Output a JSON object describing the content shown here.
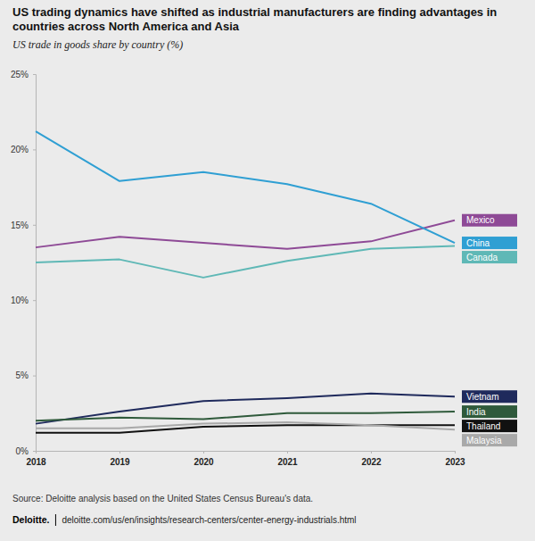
{
  "chart_data": {
    "type": "line",
    "title": "US trading dynamics have shifted as industrial manufacturers are finding advantages in countries across North America and Asia",
    "subtitle": "US trade in goods share by country (%)",
    "source": "Source: Deloitte analysis based on the United States Census Bureau's data.",
    "footer_brand": "Deloitte.",
    "footer_url": "deloitte.com/us/en/insights/research-centers/center-energy-industrials.html",
    "categories": [
      "2018",
      "2019",
      "2020",
      "2021",
      "2022",
      "2023"
    ],
    "series": [
      {
        "name": "Mexico",
        "color": "#8e4a96",
        "values": [
          13.5,
          14.2,
          13.8,
          13.4,
          13.9,
          15.3
        ]
      },
      {
        "name": "China",
        "color": "#2f9fd3",
        "values": [
          21.2,
          17.9,
          18.5,
          17.7,
          16.4,
          13.8
        ]
      },
      {
        "name": "Canada",
        "color": "#5fb8b6",
        "values": [
          12.5,
          12.7,
          11.5,
          12.6,
          13.4,
          13.6
        ]
      },
      {
        "name": "Vietnam",
        "color": "#1f2a5c",
        "values": [
          1.8,
          2.6,
          3.3,
          3.5,
          3.8,
          3.6
        ]
      },
      {
        "name": "India",
        "color": "#2f5a3b",
        "values": [
          2.0,
          2.2,
          2.1,
          2.5,
          2.5,
          2.6
        ]
      },
      {
        "name": "Thailand",
        "color": "#111111",
        "values": [
          1.2,
          1.2,
          1.6,
          1.7,
          1.7,
          1.7
        ]
      },
      {
        "name": "Malaysia",
        "color": "#a9a9a9",
        "values": [
          1.5,
          1.5,
          1.8,
          1.9,
          1.7,
          1.4
        ]
      }
    ],
    "ylim": [
      0,
      25
    ],
    "yticks": [
      {
        "value": 0,
        "label": "0%"
      },
      {
        "value": 5,
        "label": "5%"
      },
      {
        "value": 10,
        "label": "10%"
      },
      {
        "value": 15,
        "label": "15%"
      },
      {
        "value": 20,
        "label": "20%"
      },
      {
        "value": 25,
        "label": "25%"
      }
    ],
    "grid": false,
    "legend": "right"
  }
}
